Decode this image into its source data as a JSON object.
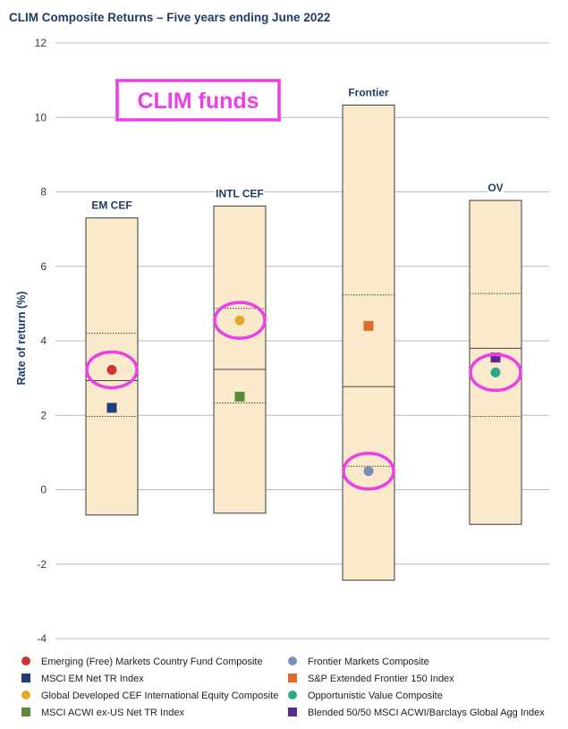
{
  "chart_data": {
    "type": "box-range",
    "title": "CLIM Composite Returns – Five years ending June 2022",
    "ylabel": "Rate of return (%)",
    "ylim": [
      -4,
      12
    ],
    "yticks": [
      "12",
      "10",
      "8",
      "6",
      "4",
      "2",
      "0",
      "-2",
      "-4"
    ],
    "grid": true,
    "groups": [
      {
        "label": "EM CEF",
        "low": -0.68,
        "q1": 1.97,
        "median": 2.93,
        "q3": 4.2,
        "high": 7.3,
        "points": [
          {
            "series": 0,
            "value": 3.22
          },
          {
            "series": 1,
            "value": 2.2
          }
        ]
      },
      {
        "label": "INTL CEF",
        "low": -0.63,
        "q1": 2.33,
        "median": 3.23,
        "q3": 4.87,
        "high": 7.62,
        "points": [
          {
            "series": 2,
            "value": 4.55
          },
          {
            "series": 3,
            "value": 2.5
          }
        ]
      },
      {
        "label": "Frontier",
        "low": -2.43,
        "q1": 0.63,
        "median": 2.77,
        "q3": 5.23,
        "high": 10.33,
        "points": [
          {
            "series": 5,
            "value": 4.4
          },
          {
            "series": 4,
            "value": 0.5
          }
        ]
      },
      {
        "label": "OV",
        "low": -0.93,
        "q1": 1.97,
        "median": 3.8,
        "q3": 5.27,
        "high": 7.77,
        "points": [
          {
            "series": 7,
            "value": 3.55
          },
          {
            "series": 6,
            "value": 3.15
          }
        ]
      }
    ],
    "series": [
      {
        "name": "Emerging (Free) Markets Country Fund Composite",
        "marker": "circle",
        "color": "#cc3333"
      },
      {
        "name": "MSCI EM Net TR Index",
        "marker": "square",
        "color": "#1f3f7a"
      },
      {
        "name": "Global Developed CEF International Equity Composite",
        "marker": "circle",
        "color": "#e3aa2a"
      },
      {
        "name": "MSCI ACWI ex-US Net TR Index",
        "marker": "square",
        "color": "#5a8a3a"
      },
      {
        "name": "Frontier Markets Composite",
        "marker": "circle",
        "color": "#7a8db5"
      },
      {
        "name": "S&P Extended Frontier 150 Index",
        "marker": "square",
        "color": "#e06a2a"
      },
      {
        "name": "Opportunistic Value Composite",
        "marker": "circle",
        "color": "#2aaa8a"
      },
      {
        "name": "Blended 50/50 MSCI ACWI/Barclays Global Agg Index",
        "marker": "square",
        "color": "#5a2a8a"
      }
    ],
    "annotation": {
      "text": "CLIM funds",
      "color": "#ee3ee6",
      "highlighted": [
        {
          "group": "EM CEF",
          "value": 3.22
        },
        {
          "group": "INTL CEF",
          "value": 4.55
        },
        {
          "group": "Frontier",
          "value": 0.5
        },
        {
          "group": "OV",
          "value": 3.15
        }
      ]
    },
    "box_color": "#fbe9cb"
  }
}
